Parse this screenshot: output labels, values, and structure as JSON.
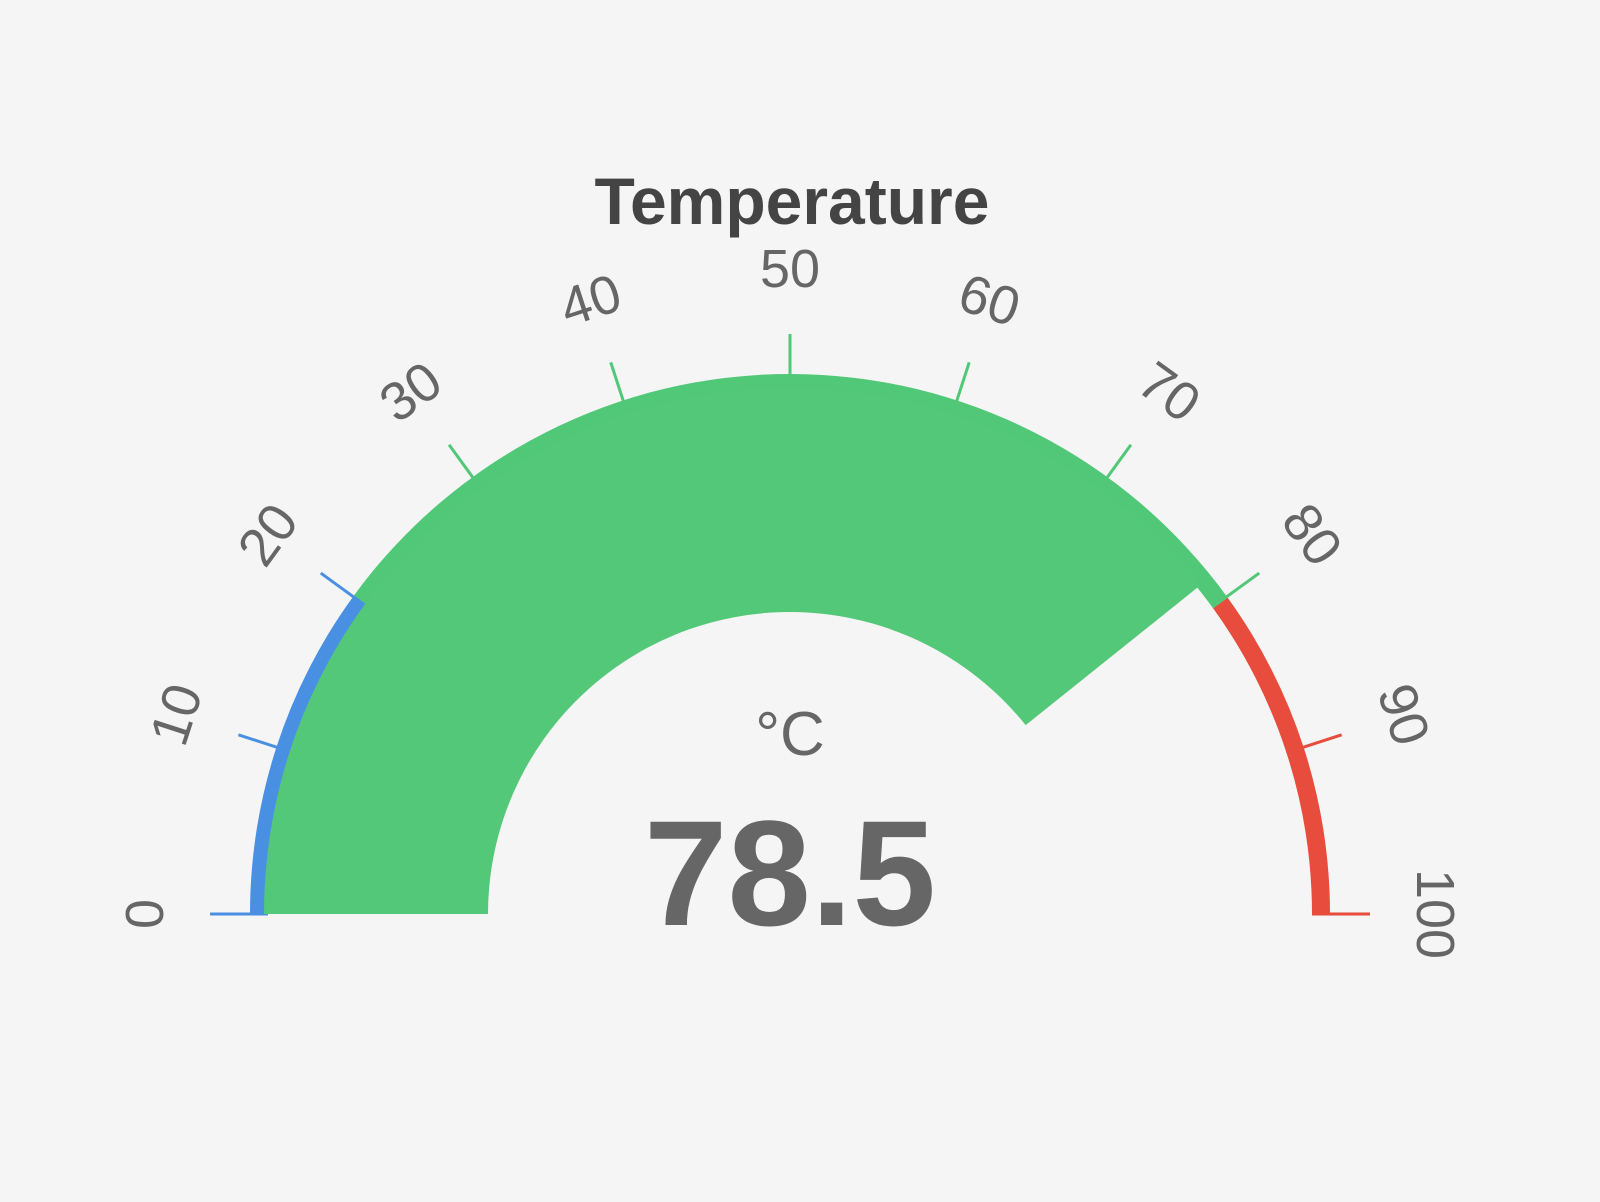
{
  "chart_data": {
    "type": "gauge",
    "title": "Temperature",
    "unit": "°C",
    "value": 78.5,
    "value_text": "78.5",
    "min": 0,
    "max": 100,
    "ticks": [
      {
        "value": 0,
        "label": "0"
      },
      {
        "value": 10,
        "label": "10"
      },
      {
        "value": 20,
        "label": "20"
      },
      {
        "value": 30,
        "label": "30"
      },
      {
        "value": 40,
        "label": "40"
      },
      {
        "value": 50,
        "label": "50"
      },
      {
        "value": 60,
        "label": "60"
      },
      {
        "value": 70,
        "label": "70"
      },
      {
        "value": 80,
        "label": "80"
      },
      {
        "value": 90,
        "label": "90"
      },
      {
        "value": 100,
        "label": "100"
      }
    ],
    "bands": [
      {
        "from": 0,
        "to": 20,
        "color": "#4a90e2"
      },
      {
        "from": 20,
        "to": 80,
        "color": "#50c878"
      },
      {
        "from": 80,
        "to": 100,
        "color": "#e74c3c"
      }
    ],
    "value_fill_color": "#52c878",
    "grid": false,
    "legend": "none"
  }
}
